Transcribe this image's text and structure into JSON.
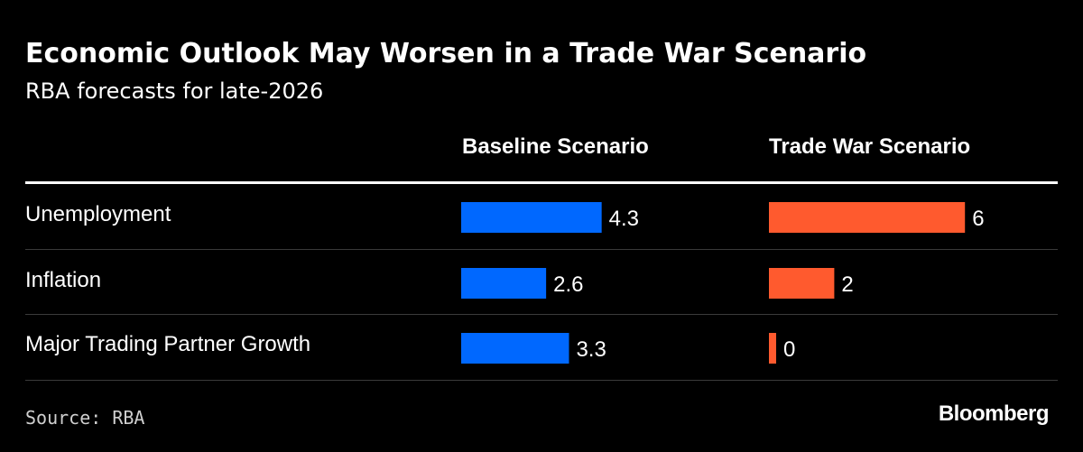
{
  "chart_data": {
    "type": "bar",
    "title": "Economic Outlook May Worsen in a Trade War Scenario",
    "subtitle": "RBA forecasts for late-2026",
    "categories": [
      "Unemployment",
      "Inflation",
      "Major Trading Partner Growth"
    ],
    "series": [
      {
        "name": "Baseline Scenario",
        "values": [
          4.3,
          2.6,
          3.3
        ],
        "labels": [
          "4.3",
          "2.6",
          "3.3"
        ],
        "color": "#0068ff"
      },
      {
        "name": "Trade War Scenario",
        "values": [
          6,
          2,
          0
        ],
        "labels": [
          "6",
          "2",
          "0"
        ],
        "color": "#ff5a2e"
      }
    ],
    "grid": false,
    "source": "Source: RBA"
  },
  "brand": "Bloomberg"
}
